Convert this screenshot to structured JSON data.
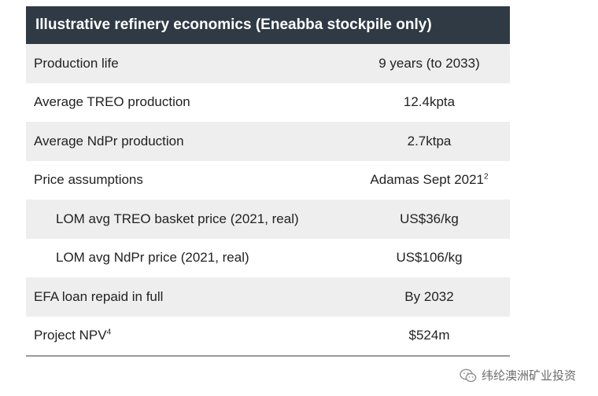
{
  "table": {
    "title": "Illustrative refinery economics (Eneabba stockpile only)",
    "rows": [
      {
        "label": "Production life",
        "value": "9 years (to 2033)",
        "sup": ""
      },
      {
        "label": "Average TREO production",
        "value": "12.4kpta",
        "sup": ""
      },
      {
        "label": "Average NdPr production",
        "value": "2.7ktpa",
        "sup": ""
      },
      {
        "label": "Price assumptions",
        "value": "Adamas Sept 2021",
        "sup": "2"
      },
      {
        "label": "LOM avg TREO basket price (2021, real)",
        "value": "US$36/kg",
        "sup": ""
      },
      {
        "label": "LOM avg NdPr price (2021, real)",
        "value": "US$106/kg",
        "sup": ""
      },
      {
        "label": "EFA loan repaid in full",
        "value": "By 2032",
        "sup": ""
      },
      {
        "label": "Project NPV",
        "label_sup": "4",
        "value": "$524m",
        "sup": ""
      }
    ]
  },
  "watermark": {
    "text": "纬纶澳洲矿业投资",
    "icon": "wechat-icon"
  }
}
